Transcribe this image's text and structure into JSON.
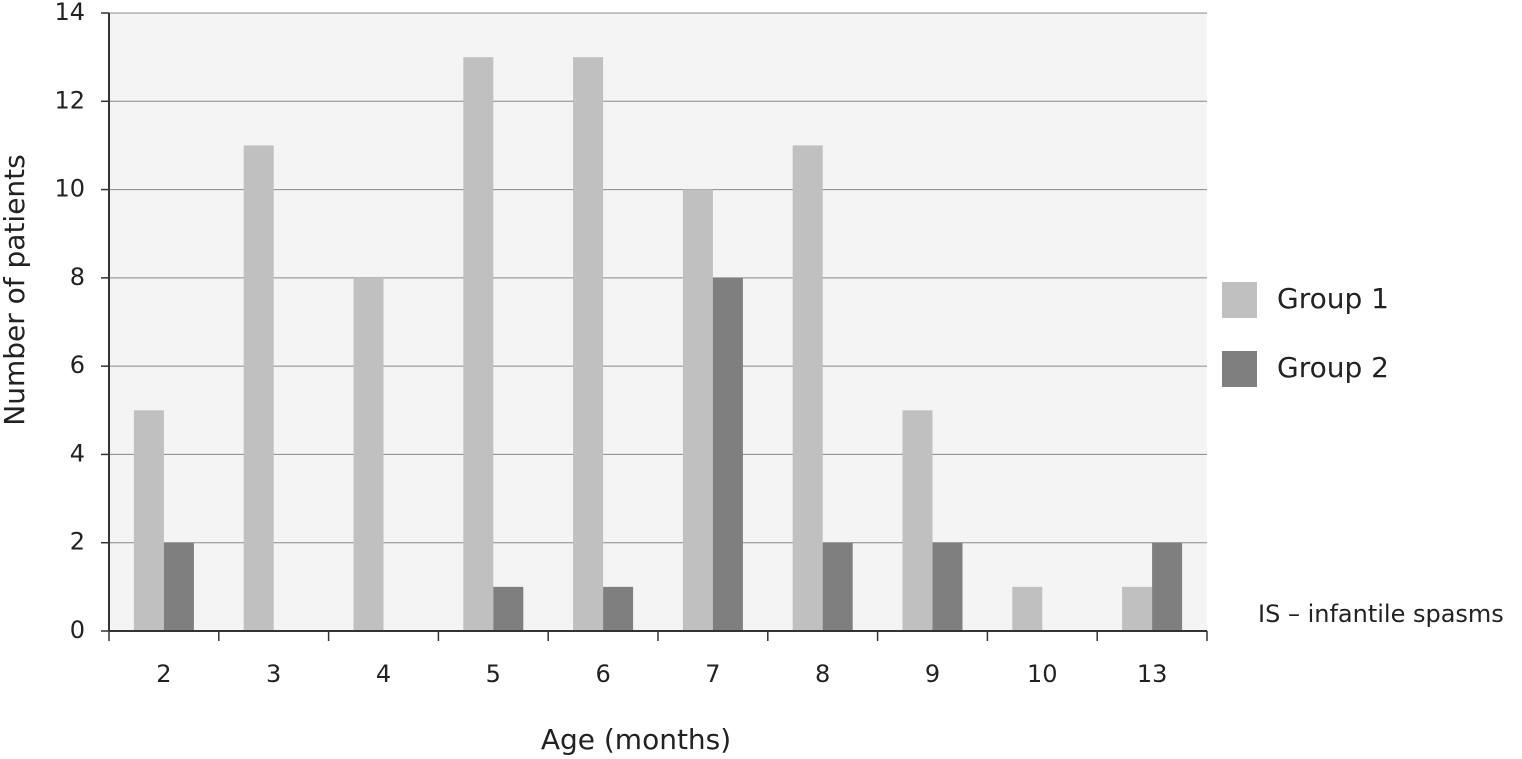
{
  "chart_data": {
    "type": "bar",
    "x_label": "Age (months)",
    "y_label": "Number of patients",
    "annotation": "IS – infantile spasms",
    "categories": [
      "2",
      "3",
      "4",
      "5",
      "6",
      "7",
      "8",
      "9",
      "10",
      "13"
    ],
    "series": [
      {
        "name": "Group 1",
        "color": "#c0c0c0",
        "values": [
          5,
          11,
          8,
          13,
          13,
          10,
          11,
          5,
          1,
          1
        ]
      },
      {
        "name": "Group 2",
        "color": "#7f7f7f",
        "values": [
          2,
          0,
          0,
          1,
          1,
          8,
          2,
          2,
          0,
          2
        ]
      }
    ],
    "ylim": [
      0,
      14
    ],
    "yticks": [
      0,
      2,
      4,
      6,
      8,
      10,
      12,
      14
    ],
    "grid": true,
    "plot_background": "#f4f4f4",
    "legend": "right"
  }
}
